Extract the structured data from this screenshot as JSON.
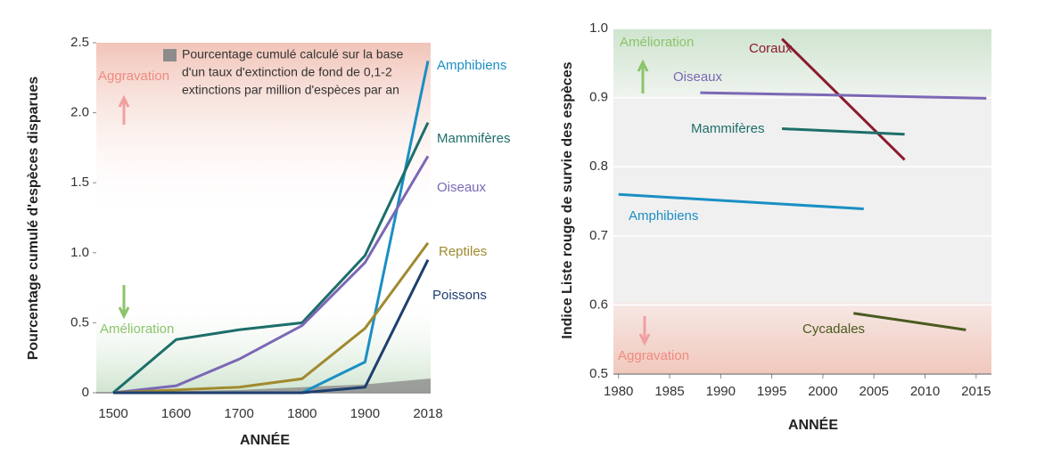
{
  "chart_data": [
    {
      "type": "line",
      "y_label": "Pourcentage cumulé d'espèces disparues",
      "x_label": "ANNÉE",
      "categories": [
        "1500",
        "1600",
        "1700",
        "1800",
        "1900",
        "2018"
      ],
      "ylim": [
        0,
        2.5
      ],
      "yticks": [
        0,
        0.5,
        {
          "value": 1,
          "label": "1.0"
        },
        1.5,
        {
          "value": 2,
          "label": "2.0"
        },
        2.5
      ],
      "grid": false,
      "annotations": {
        "worse": "Aggravation",
        "better": "Amélioration"
      },
      "background_note": [
        "Pourcentage cumulé calculé sur la base",
        "d'un taux d'extinction de fond de 0,1-2",
        "extinctions par million d'espèces par an"
      ],
      "background_rate": {
        "color": "#8c8c8c",
        "values": [
          0,
          0.01,
          0.02,
          0.04,
          0.06,
          0.1
        ]
      },
      "series": [
        {
          "name": "Amphibiens",
          "color": "#1a8fc4",
          "values": [
            0,
            0,
            0,
            0,
            0.22,
            2.37
          ]
        },
        {
          "name": "Mammifères",
          "color": "#1d6e6a",
          "values": [
            0,
            0.38,
            0.45,
            0.5,
            0.98,
            1.93
          ]
        },
        {
          "name": "Oiseaux",
          "color": "#7b68b5",
          "values": [
            0,
            0.05,
            0.24,
            0.48,
            0.93,
            1.69
          ]
        },
        {
          "name": "Reptiles",
          "color": "#a08a2e",
          "values": [
            0,
            0.02,
            0.04,
            0.1,
            0.46,
            1.07
          ]
        },
        {
          "name": "Poissons",
          "color": "#1e3f6e",
          "values": [
            0,
            0,
            0,
            0,
            0.04,
            0.95
          ]
        }
      ]
    },
    {
      "type": "line",
      "y_label": "Indice Liste rouge de survie des espèces",
      "x_label": "ANNÉE",
      "xlim": [
        1979.5,
        2016.5
      ],
      "xticks": [
        1980,
        1985,
        1990,
        1995,
        2000,
        2005,
        2010,
        2015
      ],
      "ylim": [
        0.5,
        1.0
      ],
      "yticks": [
        0.5,
        0.6,
        0.7,
        0.8,
        0.9,
        {
          "value": 1,
          "label": "1.0"
        }
      ],
      "grid": true,
      "annotations": {
        "better": "Amélioration",
        "worse": "Aggravation"
      },
      "series": [
        {
          "name": "Coraux",
          "color": "#8b1a2e",
          "x": [
            1996,
            2008
          ],
          "values": [
            0.985,
            0.81
          ]
        },
        {
          "name": "Oiseaux",
          "color": "#7b68b5",
          "x": [
            1988,
            2000,
            2016
          ],
          "values": [
            0.907,
            0.904,
            0.899
          ]
        },
        {
          "name": "Mammifères",
          "color": "#1d6e6a",
          "x": [
            1996,
            2008
          ],
          "values": [
            0.855,
            0.847
          ]
        },
        {
          "name": "Amphibiens",
          "color": "#1a8fc4",
          "x": [
            1980,
            2004
          ],
          "values": [
            0.76,
            0.739
          ]
        },
        {
          "name": "Cycadales",
          "color": "#4a5a1e",
          "x": [
            2003,
            2014
          ],
          "values": [
            0.588,
            0.564
          ]
        }
      ]
    }
  ]
}
